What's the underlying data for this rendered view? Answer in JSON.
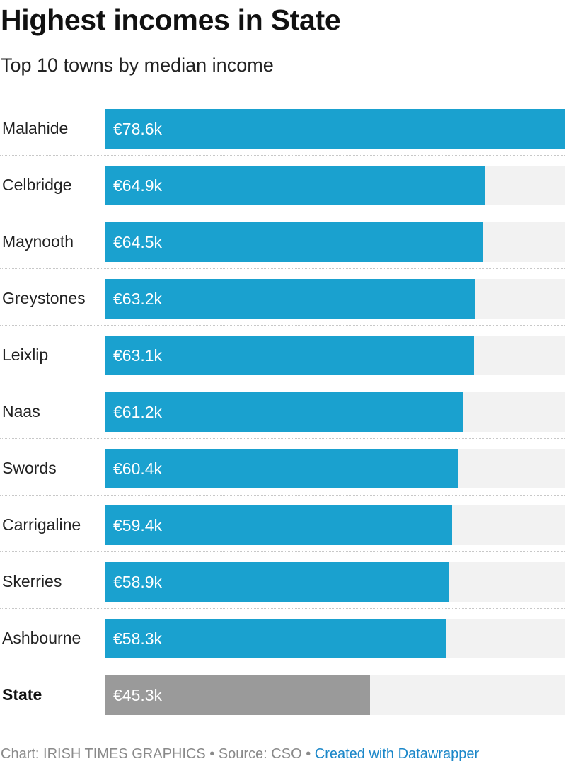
{
  "header": {
    "title": "Highest incomes in State",
    "subtitle": "Top 10 towns by median income"
  },
  "footer": {
    "credit": "Chart: IRISH TIMES GRAPHICS",
    "separator": " • ",
    "source": "Source: CSO",
    "link": "Created with Datawrapper"
  },
  "colors": {
    "bar": "#1aa1cf",
    "reference_bar": "#9a9a9a",
    "track": "#f2f2f2",
    "link": "#1b87c9"
  },
  "chart_data": {
    "type": "bar",
    "orientation": "horizontal",
    "title": "Highest incomes in State",
    "subtitle": "Top 10 towns by median income",
    "unit": "€k",
    "xlim": [
      0,
      78.6
    ],
    "grid": false,
    "categories": [
      "Malahide",
      "Celbridge",
      "Maynooth",
      "Greystones",
      "Leixlip",
      "Naas",
      "Swords",
      "Carrigaline",
      "Skerries",
      "Ashbourne",
      "State"
    ],
    "values": [
      78.6,
      64.9,
      64.5,
      63.2,
      63.1,
      61.2,
      60.4,
      59.4,
      58.9,
      58.3,
      45.3
    ],
    "value_labels": [
      "€78.6k",
      "€64.9k",
      "€64.5k",
      "€63.2k",
      "€63.1k",
      "€61.2k",
      "€60.4k",
      "€59.4k",
      "€58.9k",
      "€58.3k",
      "€45.3k"
    ],
    "highlight": [
      "State"
    ]
  }
}
